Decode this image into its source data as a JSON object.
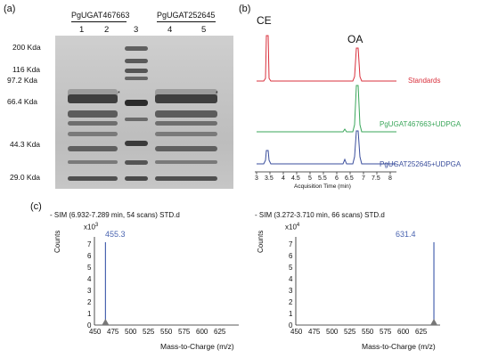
{
  "panel_a": {
    "label": "(a)",
    "group1_label": "PgUGAT467663",
    "group2_label": "PgUGAT252645",
    "lanes": [
      "1",
      "2",
      "3",
      "4",
      "5"
    ],
    "markers": [
      "200 Kda",
      "116 Kda",
      "97.2 Kda",
      "66.4 Kda",
      "44.3 Kda",
      "29.0 Kda"
    ],
    "asterisk": "*"
  },
  "panel_b": {
    "label": "(b)",
    "peak_ce": "CE",
    "peak_oa": "OA",
    "traces": [
      {
        "name": "Standards",
        "color": "#d9303c"
      },
      {
        "name": "PgUGAT467663+UDPGA",
        "color": "#3aa65a"
      },
      {
        "name": "PgUGAT252645+UDPGA",
        "color": "#3a4e9c"
      }
    ],
    "xticks": [
      "3",
      "3.5",
      "4",
      "4.5",
      "5",
      "5.5",
      "6",
      "6.5",
      "7",
      "7.5",
      "8"
    ],
    "xlabel": "Acquisition Time (min)"
  },
  "panel_c": {
    "label": "(c)",
    "spectra": [
      {
        "title": "- SIM (6.932-7.289 min, 54 scans) STD.d",
        "exponent": "x10",
        "power": "3",
        "ylabel": "Counts",
        "yticks": [
          "7",
          "6",
          "5",
          "4",
          "3",
          "2",
          "1",
          "0"
        ],
        "xticks": [
          "450",
          "475",
          "500",
          "525",
          "550",
          "575",
          "600",
          "625"
        ],
        "xlabel": "Mass-to-Charge (m/z)",
        "peak_label": "455.3",
        "peak_mz": 455.3,
        "color": "#4a64b0"
      },
      {
        "title": "- SIM (3.272-3.710 min, 66 scans) STD.d",
        "exponent": "x10",
        "power": "4",
        "ylabel": "Counts",
        "yticks": [
          "7",
          "6",
          "5",
          "4",
          "3",
          "2",
          "1",
          "0"
        ],
        "xticks": [
          "450",
          "475",
          "500",
          "525",
          "550",
          "575",
          "600",
          "625"
        ],
        "xlabel": "Mass-to-Charge (m/z)",
        "peak_label": "631.4",
        "peak_mz": 631.4,
        "color": "#4a64b0"
      }
    ]
  }
}
